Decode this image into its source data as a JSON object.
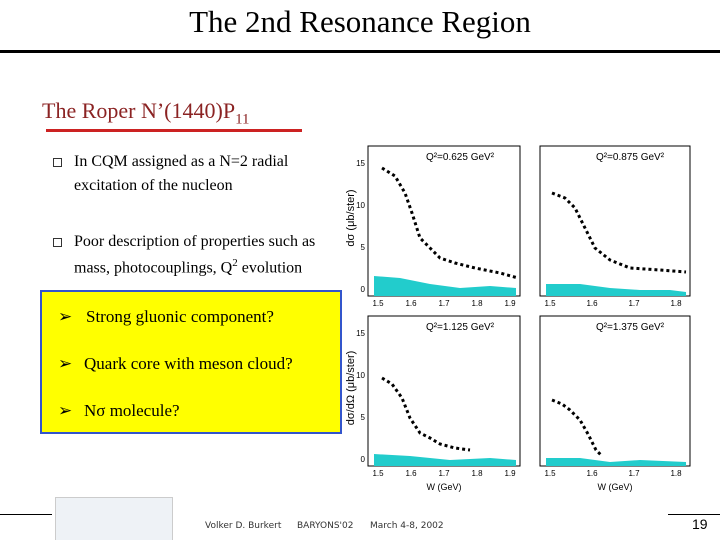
{
  "header": {
    "title": "The 2nd Resonance Region"
  },
  "subtitle": {
    "text": "The Roper N’(1440)P",
    "subscript": "11"
  },
  "bullets": [
    {
      "lines": [
        "In CQM assigned as a N=2 radial",
        "excitation of the nucleon"
      ]
    },
    {
      "line1": "Poor description of properties such as",
      "line2_before": "mass, photocouplings, Q",
      "line2_sup": "2",
      "line2_after": " evolution"
    }
  ],
  "box_items": [
    "Strong gluonic component?",
    "Quark core with meson cloud?",
    "Nσ molecule?"
  ],
  "figure": {
    "panels": [
      "Q²=0.625 GeV²",
      "Q²=0.875 GeV²",
      "Q²=1.125 GeV²",
      "Q²=1.375 GeV²"
    ],
    "y_label_top": "dσ (μb/ster)",
    "y_label_bottom": "dσ/dΩ (μb/ster)",
    "y_tick_labels": [
      "15",
      "10",
      "5",
      "0"
    ],
    "x_tick_labels_left": [
      "1.5",
      "1.6",
      "1.7",
      "1.8",
      "1.9"
    ],
    "x_tick_labels_right": [
      "1.5",
      "1.6",
      "1.7",
      "1.8"
    ],
    "x_label": "W (GeV)"
  },
  "footer": {
    "author": "Volker D. Burkert",
    "conference": "BARYONS'02",
    "date": "March 4-8, 2002",
    "page": "19"
  }
}
